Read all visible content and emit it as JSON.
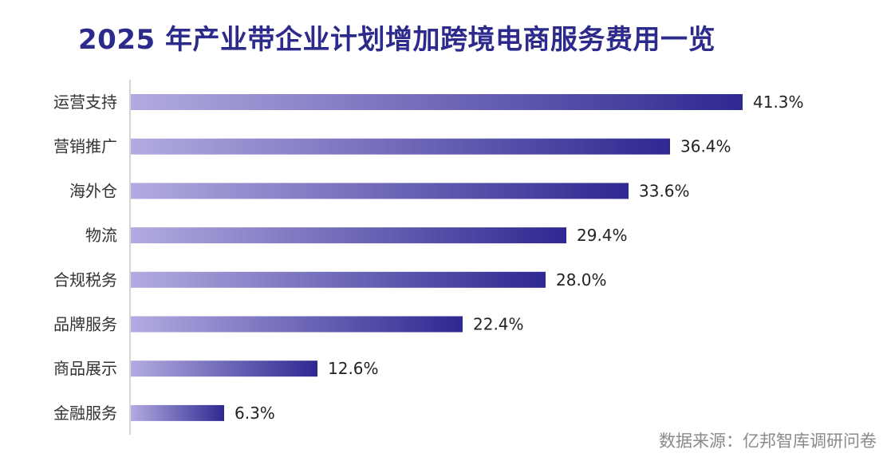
{
  "title": "2025 年产业带企业计划增加跨境电商服务费用一览",
  "source": "数据来源：亿邦智库调研问卷",
  "colors": {
    "title": "#2c2a8a",
    "bar_start": "#b2abe0",
    "bar_end": "#2e2891",
    "axis": "#c8c8c8",
    "label": "#333333",
    "value": "#222222",
    "source": "#8a8a8a"
  },
  "chart_data": {
    "type": "bar",
    "orientation": "horizontal",
    "title": "2025 年产业带企业计划增加跨境电商服务费用一览",
    "categories": [
      "运营支持",
      "营销推广",
      "海外仓",
      "物流",
      "合规税务",
      "品牌服务",
      "商品展示",
      "金融服务"
    ],
    "values": [
      41.3,
      36.4,
      33.6,
      29.4,
      28.0,
      22.4,
      12.6,
      6.3
    ],
    "value_labels": [
      "41.3%",
      "36.4%",
      "33.6%",
      "29.4%",
      "28.0%",
      "22.4%",
      "12.6%",
      "6.3%"
    ],
    "unit": "%",
    "xlim": [
      0,
      41.3
    ],
    "grid": false,
    "legend": "none"
  }
}
